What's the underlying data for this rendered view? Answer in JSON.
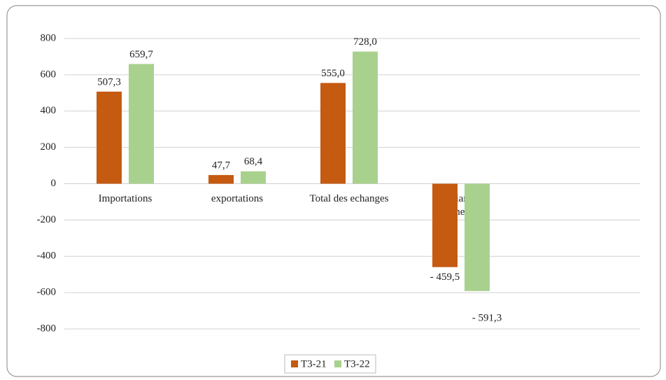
{
  "chart_data": {
    "type": "bar",
    "categories": [
      "Importations",
      "exportations",
      "Total des echanges",
      "Balance commerciale"
    ],
    "series": [
      {
        "name": "T3-21",
        "color": "#c55a11",
        "values": [
          507.3,
          47.7,
          555.0,
          -459.5
        ],
        "value_labels": [
          "507,3",
          "47,7",
          "555,0",
          "- 459,5"
        ]
      },
      {
        "name": "T3-22",
        "color": "#a9d18e",
        "values": [
          659.7,
          68.4,
          728.0,
          -591.3
        ],
        "value_labels": [
          "659,7",
          "68,4",
          "728,0",
          "- 591,3"
        ]
      }
    ],
    "ylim": [
      -800,
      800
    ],
    "yticks": [
      -800,
      -600,
      -400,
      -200,
      0,
      200,
      400,
      600,
      800
    ],
    "grid": true,
    "legend": "bottom"
  }
}
